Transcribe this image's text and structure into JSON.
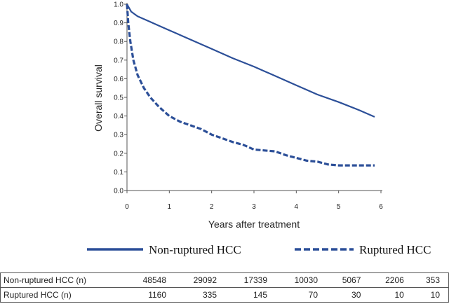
{
  "chart_data": {
    "type": "line",
    "xlabel": "Years after treatment",
    "ylabel": "Overall survival",
    "xlim": [
      0,
      6
    ],
    "ylim": [
      0,
      1.0
    ],
    "x_ticks": [
      "0",
      "1",
      "2",
      "3",
      "4",
      "5",
      "6"
    ],
    "y_ticks": [
      "0.0",
      "0.1",
      "0.2",
      "0.3",
      "0.4",
      "0.5",
      "0.6",
      "0.7",
      "0.8",
      "0.9",
      "1.0"
    ],
    "grid": false,
    "legend_position": "bottom",
    "series": [
      {
        "name": "Non-ruptured HCC",
        "style": "solid",
        "color": "#2c4f98",
        "points": [
          [
            0,
            1.0
          ],
          [
            0.1,
            0.96
          ],
          [
            0.25,
            0.935
          ],
          [
            0.5,
            0.91
          ],
          [
            0.75,
            0.885
          ],
          [
            1,
            0.86
          ],
          [
            1.5,
            0.81
          ],
          [
            2,
            0.76
          ],
          [
            2.5,
            0.71
          ],
          [
            3,
            0.665
          ],
          [
            3.5,
            0.615
          ],
          [
            4,
            0.565
          ],
          [
            4.5,
            0.515
          ],
          [
            5,
            0.475
          ],
          [
            5.5,
            0.43
          ],
          [
            5.85,
            0.395
          ]
        ]
      },
      {
        "name": "Ruptured HCC",
        "style": "dashed",
        "color": "#2c4f98",
        "points": [
          [
            0,
            1.0
          ],
          [
            0.03,
            0.9
          ],
          [
            0.08,
            0.8
          ],
          [
            0.15,
            0.7
          ],
          [
            0.25,
            0.62
          ],
          [
            0.4,
            0.55
          ],
          [
            0.55,
            0.5
          ],
          [
            0.75,
            0.45
          ],
          [
            1,
            0.4
          ],
          [
            1.25,
            0.37
          ],
          [
            1.5,
            0.35
          ],
          [
            1.75,
            0.33
          ],
          [
            2,
            0.3
          ],
          [
            2.25,
            0.28
          ],
          [
            2.5,
            0.26
          ],
          [
            2.75,
            0.245
          ],
          [
            3,
            0.22
          ],
          [
            3.25,
            0.215
          ],
          [
            3.5,
            0.21
          ],
          [
            3.75,
            0.19
          ],
          [
            4,
            0.175
          ],
          [
            4.25,
            0.16
          ],
          [
            4.5,
            0.155
          ],
          [
            4.75,
            0.14
          ],
          [
            5,
            0.135
          ],
          [
            5.25,
            0.135
          ],
          [
            5.5,
            0.135
          ],
          [
            5.85,
            0.135
          ]
        ]
      }
    ]
  },
  "legend": {
    "items": [
      {
        "label": "Non-ruptured HCC",
        "style": "solid"
      },
      {
        "label": "Ruptured HCC",
        "style": "dashed"
      }
    ]
  },
  "risk_table": {
    "rows": [
      {
        "label": "Non-ruptured HCC (n)",
        "values": [
          "48548",
          "29092",
          "17339",
          "10030",
          "5067",
          "2206",
          "353"
        ]
      },
      {
        "label": "Ruptured HCC (n)",
        "values": [
          "1160",
          "335",
          "145",
          "70",
          "30",
          "10",
          "10"
        ]
      }
    ]
  }
}
